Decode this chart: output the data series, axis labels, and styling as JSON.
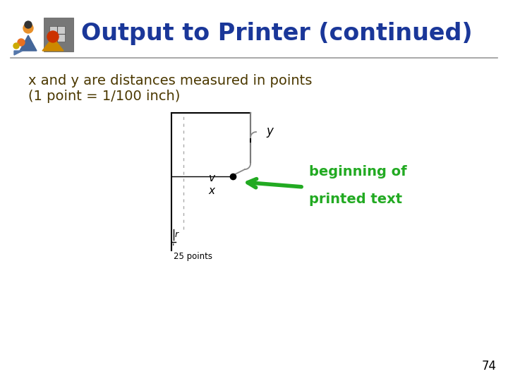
{
  "title": "Output to Printer (continued)",
  "title_color": "#1A3799",
  "body_line1": "x and y are distances measured in points",
  "body_line2": "(1 point = 1/100 inch)",
  "body_color": "#4B3800",
  "bg_color": "#FFFFFF",
  "annotation_line1": "beginning of",
  "annotation_line2": "printed text",
  "annotation_color": "#22AA22",
  "label_25pts": "25 points",
  "label_x": "x",
  "label_y": "y",
  "label_v": "v",
  "label_r": "r",
  "page_number": "74",
  "sep_color": "#999999",
  "black": "#000000",
  "gray": "#888888"
}
